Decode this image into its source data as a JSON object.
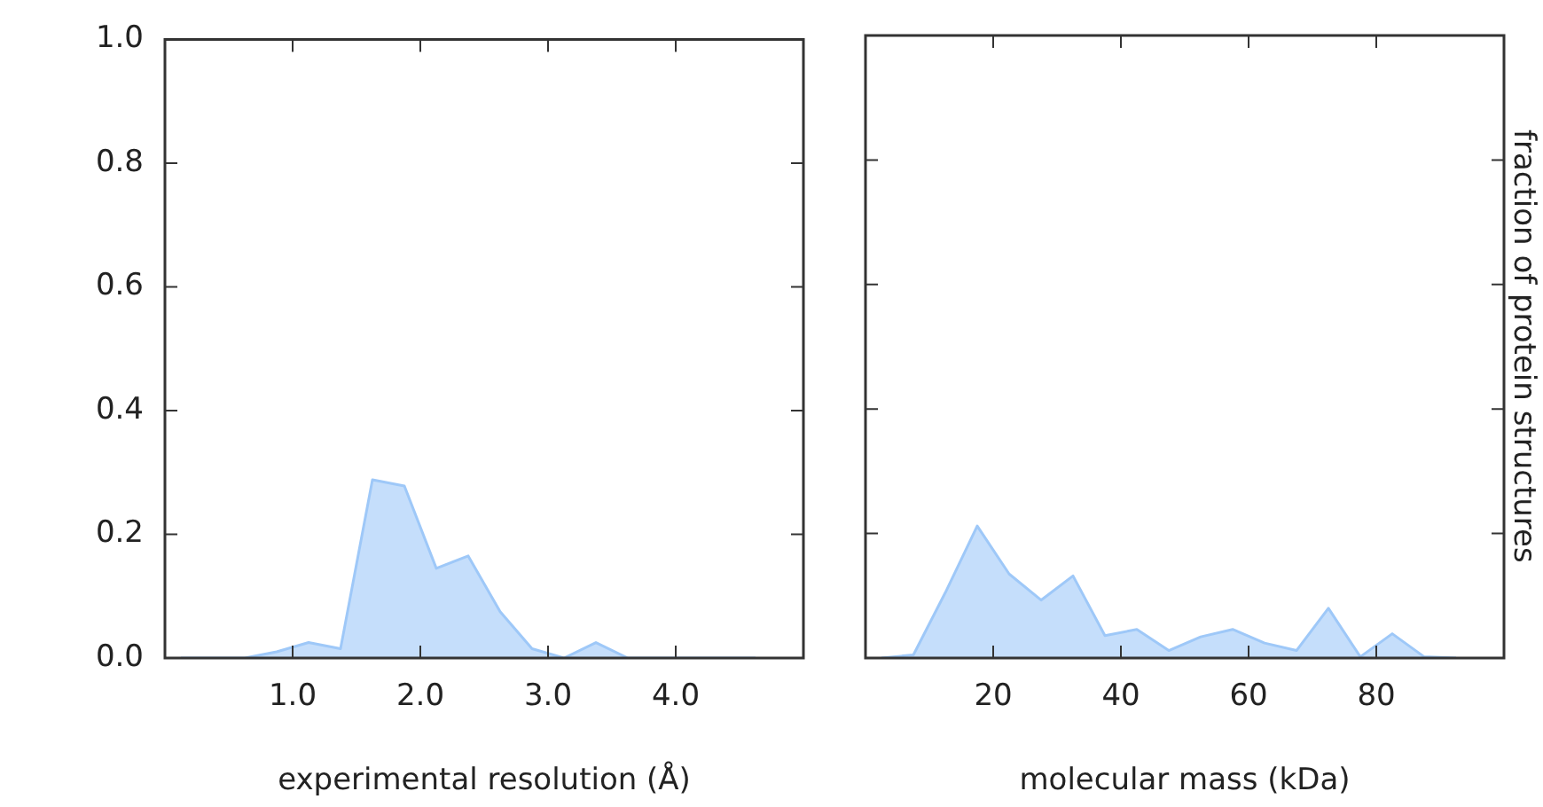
{
  "chart_data": [
    {
      "type": "area",
      "xlabel": "experimental resolution (Å)",
      "xlim": [
        0,
        5
      ],
      "xticks": [
        {
          "value": 1,
          "label": "1.0"
        },
        {
          "value": 2,
          "label": "2.0"
        },
        {
          "value": 3,
          "label": "3.0"
        },
        {
          "value": 4,
          "label": "4.0"
        }
      ],
      "ylim": [
        0,
        1
      ],
      "yticks": [
        {
          "value": 0,
          "label": "0.0"
        },
        {
          "value": 0.2,
          "label": "0.2"
        },
        {
          "value": 0.4,
          "label": "0.4"
        },
        {
          "value": 0.6,
          "label": "0.6"
        },
        {
          "value": 0.8,
          "label": "0.8"
        },
        {
          "value": 1,
          "label": "1.0"
        }
      ],
      "grid": false,
      "legend": false,
      "x": [
        0.125,
        0.375,
        0.625,
        0.875,
        1.125,
        1.375,
        1.625,
        1.875,
        2.125,
        2.375,
        2.625,
        2.875,
        3.125,
        3.375,
        3.625,
        3.875,
        4.125,
        4.375,
        4.625
      ],
      "series": [
        {
          "color": "#9ec8f8",
          "values": [
            0,
            0,
            0,
            0.01,
            0.025,
            0.015,
            0.288,
            0.278,
            0.145,
            0.165,
            0.075,
            0.015,
            0,
            0.025,
            0,
            0,
            0,
            0,
            0
          ]
        }
      ]
    },
    {
      "type": "area",
      "xlabel": "molecular mass (kDa)",
      "ylabel": "fraction of protein structures",
      "xlim": [
        0,
        100
      ],
      "xticks": [
        20,
        40,
        60,
        80
      ],
      "ylim": [
        0,
        1
      ],
      "yticks": [
        0,
        0.2,
        0.4,
        0.6,
        0.8,
        1
      ],
      "tick_labels": "x",
      "grid": false,
      "legend": false,
      "x": [
        2.5,
        7.5,
        12.5,
        17.5,
        22.5,
        27.5,
        32.5,
        37.5,
        42.5,
        47.5,
        52.5,
        57.5,
        62.5,
        67.5,
        72.5,
        77.5,
        82.5,
        87.5,
        92.5
      ],
      "series": [
        {
          "color": "#9ec8f8",
          "values": [
            0,
            0.005,
            0.105,
            0.212,
            0.135,
            0.093,
            0.132,
            0.036,
            0.046,
            0.012,
            0.034,
            0.046,
            0.024,
            0.012,
            0.08,
            0.002,
            0.039,
            0.002,
            0
          ]
        }
      ]
    }
  ]
}
